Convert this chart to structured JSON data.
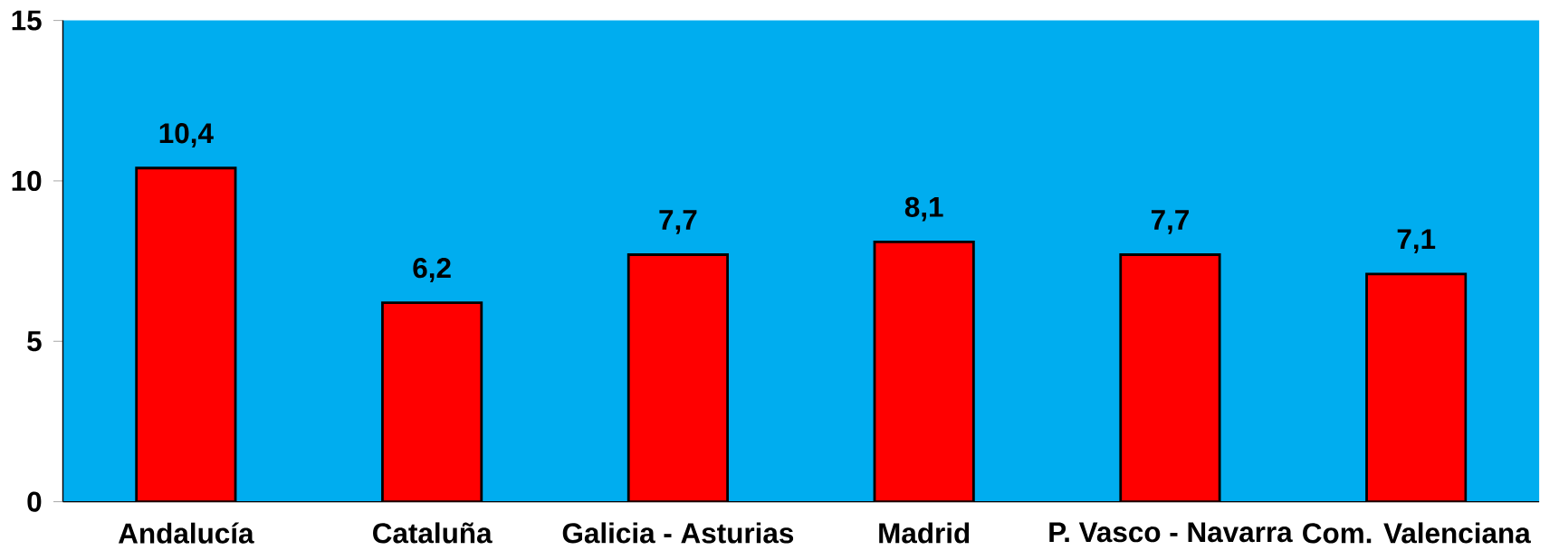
{
  "chart_data": {
    "type": "bar",
    "categories": [
      "Andalucía",
      "Cataluña",
      "Galicia - Asturias",
      "Madrid",
      "P. Vasco - Navarra",
      "Com. Valenciana"
    ],
    "values": [
      10.4,
      6.2,
      7.7,
      8.1,
      7.7,
      7.1
    ],
    "value_labels": [
      "10,4",
      "6,2",
      "7,7",
      "8,1",
      "7,7",
      "7,1"
    ],
    "color": "#ff0000",
    "ylim": [
      0,
      15
    ],
    "yticks": [
      0,
      5,
      10,
      15
    ]
  }
}
